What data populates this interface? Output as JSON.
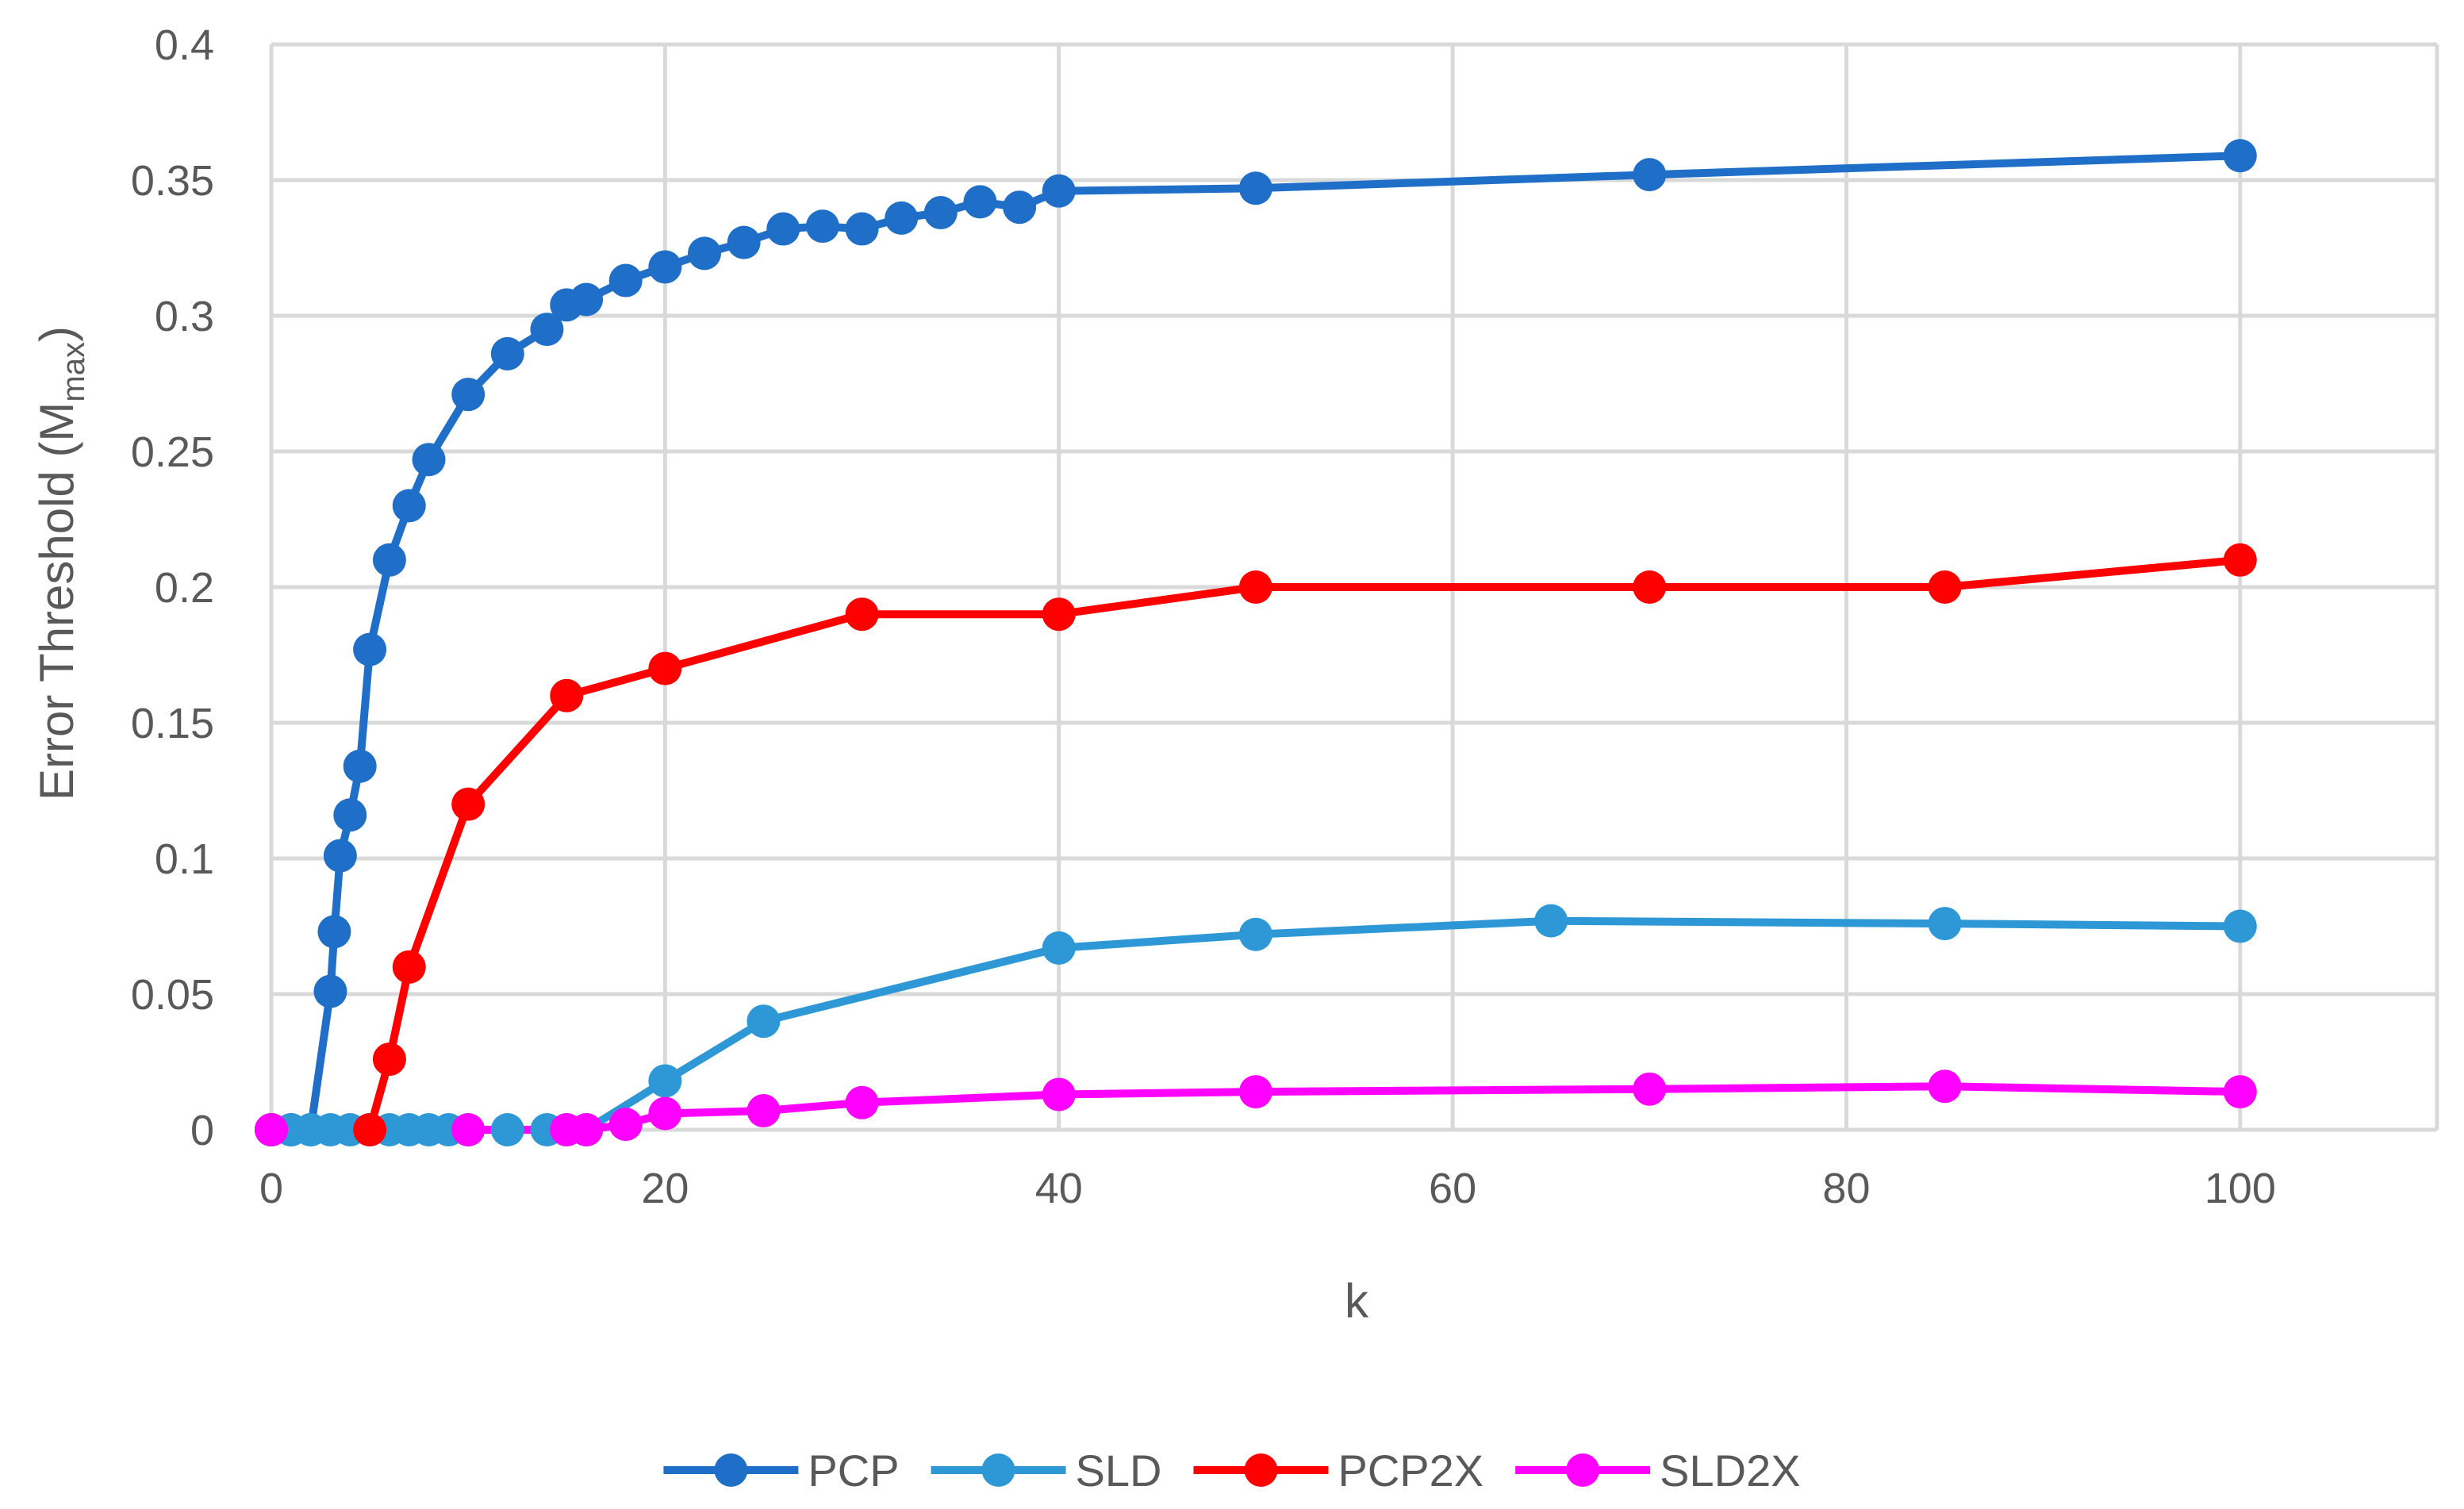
{
  "chart_data": {
    "type": "line",
    "title": "",
    "xlabel": "k",
    "ylabel_main": "Error Threshold (M",
    "ylabel_sub": "max",
    "ylabel_close": ")",
    "xlim": [
      0,
      110
    ],
    "ylim": [
      0,
      0.4
    ],
    "x_ticks": [
      0,
      20,
      40,
      60,
      80,
      100
    ],
    "y_ticks": [
      0,
      0.05,
      0.1,
      0.15,
      0.2,
      0.25,
      0.3,
      0.35,
      0.4
    ],
    "x_tick_labels": [
      "0",
      "20",
      "40",
      "60",
      "80",
      "100"
    ],
    "y_tick_labels": [
      "0",
      "0.05",
      "0.1",
      "0.15",
      "0.2",
      "0.25",
      "0.3",
      "0.35",
      "0.4"
    ],
    "grid": true,
    "legend_position": "bottom",
    "series": [
      {
        "name": "PCP",
        "color": "#1f6fc8",
        "x": [
          0,
          1,
          2,
          3,
          3.2,
          3.5,
          4,
          4.5,
          5,
          6,
          7,
          8,
          10,
          12,
          14,
          15,
          16,
          18,
          20,
          22,
          24,
          26,
          28,
          30,
          32,
          34,
          36,
          38,
          40,
          50,
          70,
          100
        ],
        "y": [
          0,
          0,
          0,
          0.051,
          0.073,
          0.101,
          0.116,
          0.134,
          0.177,
          0.21,
          0.23,
          0.247,
          0.271,
          0.286,
          0.295,
          0.304,
          0.306,
          0.313,
          0.318,
          0.323,
          0.327,
          0.332,
          0.333,
          0.332,
          0.336,
          0.338,
          0.342,
          0.34,
          0.346,
          0.347,
          0.352,
          0.359
        ]
      },
      {
        "name": "SLD",
        "color": "#2e98d6",
        "x": [
          0,
          1,
          2,
          3,
          4,
          5,
          6,
          7,
          8,
          9,
          10,
          12,
          14,
          15,
          16,
          20,
          25,
          40,
          50,
          65,
          85,
          100
        ],
        "y": [
          0,
          0,
          0,
          0,
          0,
          0,
          0,
          0,
          0,
          0,
          0,
          0,
          0,
          0,
          0,
          0.018,
          0.04,
          0.067,
          0.072,
          0.077,
          0.076,
          0.075
        ]
      },
      {
        "name": "PCP2X",
        "color": "#ff0000",
        "x": [
          0,
          5,
          6,
          7,
          10,
          15,
          20,
          30,
          40,
          50,
          70,
          85,
          100
        ],
        "y": [
          0,
          0,
          0.026,
          0.06,
          0.12,
          0.16,
          0.17,
          0.19,
          0.19,
          0.2,
          0.2,
          0.2,
          0.21
        ]
      },
      {
        "name": "SLD2X",
        "color": "#ff00ff",
        "x": [
          0,
          10,
          15,
          16,
          18,
          20,
          25,
          30,
          40,
          50,
          70,
          85,
          100
        ],
        "y": [
          0,
          0,
          0,
          0,
          0.002,
          0.006,
          0.007,
          0.01,
          0.013,
          0.014,
          0.015,
          0.016,
          0.014
        ]
      }
    ]
  }
}
